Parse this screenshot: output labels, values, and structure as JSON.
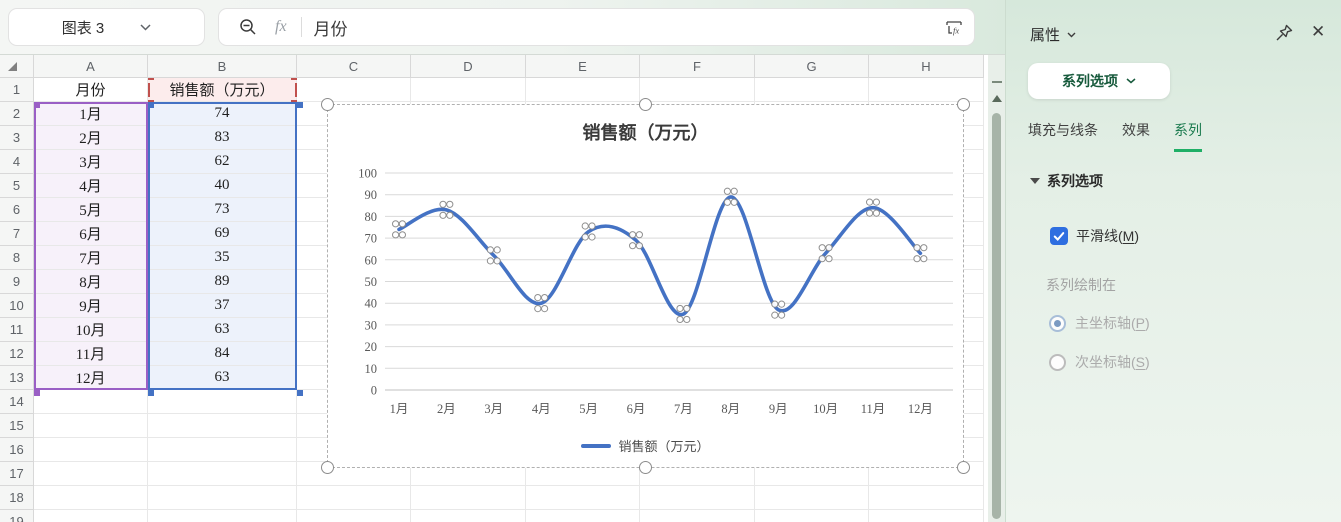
{
  "name_box": {
    "value": "图表 3"
  },
  "formula_bar": {
    "fx_label": "fx",
    "value": "月份"
  },
  "sheet": {
    "columns": [
      "A",
      "B",
      "C",
      "D",
      "E",
      "F",
      "G",
      "H"
    ],
    "rows": [
      "1",
      "2",
      "3",
      "4",
      "5",
      "6",
      "7",
      "8",
      "9",
      "10",
      "11",
      "12",
      "13",
      "14",
      "15",
      "16",
      "17",
      "18",
      "19"
    ],
    "table": {
      "month_header": "月份",
      "value_header": "销售额（万元）",
      "months": [
        "1月",
        "2月",
        "3月",
        "4月",
        "5月",
        "6月",
        "7月",
        "8月",
        "9月",
        "10月",
        "11月",
        "12月"
      ],
      "values": [
        "74",
        "83",
        "62",
        "40",
        "73",
        "69",
        "35",
        "89",
        "37",
        "63",
        "84",
        "63"
      ]
    }
  },
  "chart_data": {
    "type": "line",
    "smooth": true,
    "title": "销售额（万元）",
    "categories": [
      "1月",
      "2月",
      "3月",
      "4月",
      "5月",
      "6月",
      "7月",
      "8月",
      "9月",
      "10月",
      "11月",
      "12月"
    ],
    "series": [
      {
        "name": "销售额（万元）",
        "values": [
          74,
          83,
          62,
          40,
          73,
          69,
          35,
          89,
          37,
          63,
          84,
          63
        ]
      }
    ],
    "xlabel": "",
    "ylabel": "",
    "ylim": [
      0,
      100
    ],
    "ytick_step": 10,
    "grid": true,
    "legend_position": "bottom",
    "line_color": "#4472c4",
    "gridline_color": "#d9d9d9",
    "axis_text_color": "#595959"
  },
  "panel": {
    "title": "属性",
    "dropdown_label": "系列选项",
    "tabs": [
      {
        "label": "填充与线条",
        "active": false
      },
      {
        "label": "效果",
        "active": false
      },
      {
        "label": "系列",
        "active": true
      }
    ],
    "section_title": "系列选项",
    "smooth_checkbox": {
      "label": "平滑线(",
      "key": "M",
      "suffix": ")",
      "checked": true
    },
    "plot_on_label": "系列绘制在",
    "radios": [
      {
        "label": "主坐标轴(",
        "key": "P",
        "suffix": ")",
        "selected": true
      },
      {
        "label": "次坐标轴(",
        "key": "S",
        "suffix": ")",
        "selected": false
      }
    ],
    "close_glyph": "✕"
  },
  "colors": {
    "accent_green": "#1b7a4e",
    "tab_underline": "#1faf66",
    "checkbox_blue": "#2e6ee0",
    "series_line": "#4472c4",
    "category_range_purple": "#9a5fc5",
    "value_range_blue": "#4472c4",
    "name_range_red": "#c0504d",
    "a_fill": "#f7f1fa",
    "b_fill": "#edf2fb",
    "b1_fill": "#fcecec"
  }
}
